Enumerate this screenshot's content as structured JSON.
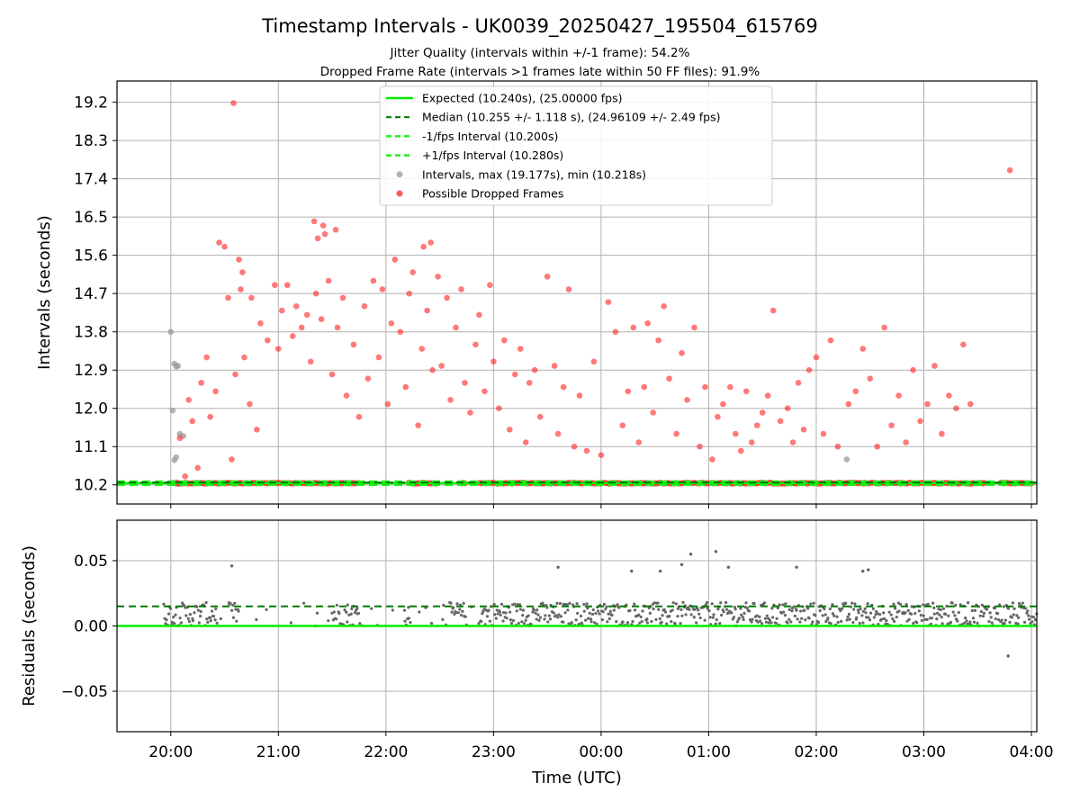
{
  "title": "Timestamp Intervals - UK0039_20250427_195504_615769",
  "subtitle_1": "Jitter Quality (intervals within +/-1 frame): 54.2%",
  "subtitle_2": "Dropped Frame Rate (intervals >1 frames late within 50 FF files): 91.9%",
  "colors": {
    "expected": "#00ee00",
    "median": "#007a00",
    "fps_interval": "#22ee22",
    "intervals": "#999999",
    "dropped": "#ff2020",
    "residuals": "#666666",
    "grid": "#b0b0b0"
  },
  "chart_data": [
    {
      "type": "scatter",
      "panel": "intervals",
      "ylabel": "Intervals (seconds)",
      "y_ticks": [
        "10.2",
        "11.1",
        "12.0",
        "12.9",
        "13.8",
        "14.7",
        "15.6",
        "16.5",
        "17.4",
        "18.3",
        "19.2"
      ],
      "ylim": [
        9.75,
        19.7
      ],
      "xlim": [
        "19:30",
        "04:03"
      ],
      "grid": true,
      "legend_position": "top-center",
      "legend": [
        "Expected (10.240s), (25.00000 fps)",
        "Median (10.255 +/- 1.118 s), (24.96109 +/- 2.49 fps)",
        "-1/fps Interval (10.200s)",
        "+1/fps Interval (10.280s)",
        "Intervals, max (19.177s), min (10.218s)",
        "Possible Dropped Frames"
      ],
      "reference_lines": {
        "expected": 10.24,
        "median": 10.255,
        "minus_1_fps": 10.2,
        "plus_1_fps": 10.28
      },
      "normal_intervals": {
        "x": [
          "19:59",
          "20:00",
          "20:01",
          "20:02",
          "20:03",
          "20:04",
          "20:05",
          "20:07",
          "20:03",
          "20:02",
          "20:03",
          "20:04",
          "20:01",
          "22:18",
          "02:17",
          "02:19"
        ],
        "y": [
          10.24,
          13.8,
          11.95,
          13.05,
          12.98,
          13.0,
          11.4,
          11.35,
          10.85,
          10.78,
          10.26,
          10.22,
          10.25,
          10.25,
          10.8,
          10.25
        ]
      },
      "dropped_frames_dense_band": {
        "x_start": "20:03",
        "x_end": "04:00",
        "y": 10.24,
        "gaps": [
          [
            "21:45",
            "22:12"
          ],
          [
            "22:28",
            "22:42"
          ],
          [
            "22:45",
            "22:52"
          ],
          [
            "03:34",
            "03:42"
          ]
        ]
      },
      "dropped_frames": {
        "x": [
          "20:35",
          "03:48",
          "21:20",
          "21:22",
          "21:25",
          "21:26",
          "21:32",
          "22:21",
          "22:25",
          "20:38",
          "20:40",
          "20:39",
          "20:45",
          "20:41",
          "20:44",
          "20:48",
          "20:50",
          "20:54",
          "20:58",
          "21:00",
          "21:02",
          "21:05",
          "21:08",
          "21:10",
          "21:13",
          "21:16",
          "21:18",
          "21:21",
          "21:24",
          "21:28",
          "21:30",
          "21:33",
          "21:36",
          "21:38",
          "21:42",
          "21:45",
          "21:48",
          "21:50",
          "21:53",
          "21:56",
          "21:58",
          "22:01",
          "22:03",
          "22:05",
          "22:08",
          "22:11",
          "22:13",
          "22:15",
          "22:18",
          "22:20",
          "22:23",
          "22:26",
          "22:29",
          "22:31",
          "22:34",
          "22:36",
          "22:39",
          "22:42",
          "22:44",
          "22:47",
          "22:50",
          "22:52",
          "22:55",
          "22:58",
          "23:00",
          "23:03",
          "23:06",
          "23:09",
          "23:12",
          "23:15",
          "23:18",
          "23:20",
          "23:23",
          "23:26",
          "23:30",
          "23:34",
          "23:36",
          "23:39",
          "23:42",
          "23:45",
          "23:48",
          "23:52",
          "23:56",
          "00:00",
          "00:04",
          "00:08",
          "00:12",
          "00:15",
          "00:18",
          "00:21",
          "00:24",
          "00:26",
          "00:29",
          "00:32",
          "00:35",
          "00:38",
          "00:42",
          "00:45",
          "00:48",
          "00:52",
          "00:55",
          "00:58",
          "01:02",
          "01:05",
          "01:08",
          "01:12",
          "01:15",
          "01:18",
          "01:21",
          "01:24",
          "01:27",
          "01:30",
          "01:33",
          "01:36",
          "01:40",
          "01:44",
          "01:47",
          "01:50",
          "01:53",
          "01:56",
          "02:00",
          "02:04",
          "02:08",
          "02:12",
          "02:18",
          "02:22",
          "02:26",
          "02:30",
          "02:34",
          "02:38",
          "02:42",
          "02:46",
          "02:50",
          "02:54",
          "02:58",
          "03:02",
          "03:06",
          "03:10",
          "03:14",
          "03:18",
          "03:22",
          "03:26",
          "20:17",
          "20:20",
          "20:22",
          "20:25",
          "20:27",
          "20:30",
          "20:32",
          "20:34",
          "20:36",
          "20:10",
          "20:12",
          "20:15",
          "20:05",
          "20:08"
        ],
        "y": [
          19.18,
          17.6,
          16.4,
          16.0,
          16.3,
          16.1,
          16.2,
          15.8,
          15.9,
          15.5,
          15.2,
          14.8,
          14.6,
          13.2,
          12.1,
          11.5,
          14.0,
          13.6,
          14.9,
          13.4,
          14.3,
          14.9,
          13.7,
          14.4,
          13.9,
          14.2,
          13.1,
          14.7,
          14.1,
          15.0,
          12.8,
          13.9,
          14.6,
          12.3,
          13.5,
          11.8,
          14.4,
          12.7,
          15.0,
          13.2,
          14.8,
          12.1,
          14.0,
          15.5,
          13.8,
          12.5,
          14.7,
          15.2,
          11.6,
          13.4,
          14.3,
          12.9,
          15.1,
          13.0,
          14.6,
          12.2,
          13.9,
          14.8,
          12.6,
          11.9,
          13.5,
          14.2,
          12.4,
          14.9,
          13.1,
          12.0,
          13.6,
          11.5,
          12.8,
          13.4,
          11.2,
          12.6,
          12.9,
          11.8,
          15.1,
          13.0,
          11.4,
          12.5,
          14.8,
          11.1,
          12.3,
          11.0,
          13.1,
          10.9,
          14.5,
          13.8,
          11.6,
          12.4,
          13.9,
          11.2,
          12.5,
          14.0,
          11.9,
          13.6,
          14.4,
          12.7,
          11.4,
          13.3,
          12.2,
          13.9,
          11.1,
          12.5,
          10.8,
          11.8,
          12.1,
          12.5,
          11.4,
          11.0,
          12.4,
          11.2,
          11.6,
          11.9,
          12.3,
          14.3,
          11.7,
          12.0,
          11.2,
          12.6,
          11.5,
          12.9,
          13.2,
          11.4,
          13.6,
          11.1,
          12.1,
          12.4,
          13.4,
          12.7,
          11.1,
          13.9,
          11.6,
          12.3,
          11.2,
          12.9,
          11.7,
          12.1,
          13.0,
          11.4,
          12.3,
          12.0,
          13.5,
          12.1,
          12.6,
          13.2,
          11.8,
          12.4,
          15.9,
          15.8,
          14.6,
          10.8,
          12.8,
          12.2,
          11.7,
          10.6,
          11.3,
          10.4
        ]
      }
    },
    {
      "type": "scatter",
      "panel": "residuals",
      "xlabel": "Time (UTC)",
      "ylabel": "Residuals (seconds)",
      "x_ticks": [
        "20:00",
        "21:00",
        "22:00",
        "23:00",
        "00:00",
        "01:00",
        "02:00",
        "03:00",
        "04:00"
      ],
      "y_ticks": [
        "0.05",
        "0.00",
        "−0.05"
      ],
      "ylim": [
        -0.081,
        0.081
      ],
      "xlim": [
        "19:30",
        "04:03"
      ],
      "grid": true,
      "reference_lines": {
        "expected": 0.0,
        "median": 0.015
      },
      "residual_band": {
        "x_start": "19:56",
        "x_end": "04:03",
        "y_min": 0.0,
        "y_max": 0.018
      },
      "outliers": {
        "x": [
          "20:34",
          "23:36",
          "00:17",
          "00:33",
          "00:45",
          "00:50",
          "01:04",
          "01:11",
          "01:49",
          "02:26",
          "02:29",
          "03:47"
        ],
        "y": [
          0.046,
          0.045,
          0.042,
          0.042,
          0.047,
          0.055,
          0.057,
          0.045,
          0.045,
          0.042,
          0.043,
          -0.023
        ]
      }
    }
  ]
}
